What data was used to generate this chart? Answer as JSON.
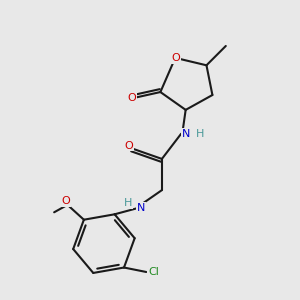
{
  "bg_color": "#e8e8e8",
  "bond_color": "#1a1a1a",
  "O_color": "#cc0000",
  "N_color": "#0000cc",
  "N2_color": "#4a9999",
  "Cl_color": "#228B22",
  "linewidth": 1.5,
  "figsize": [
    3.0,
    3.0
  ],
  "dpi": 100,
  "xlim": [
    0,
    10
  ],
  "ylim": [
    0,
    10
  ]
}
